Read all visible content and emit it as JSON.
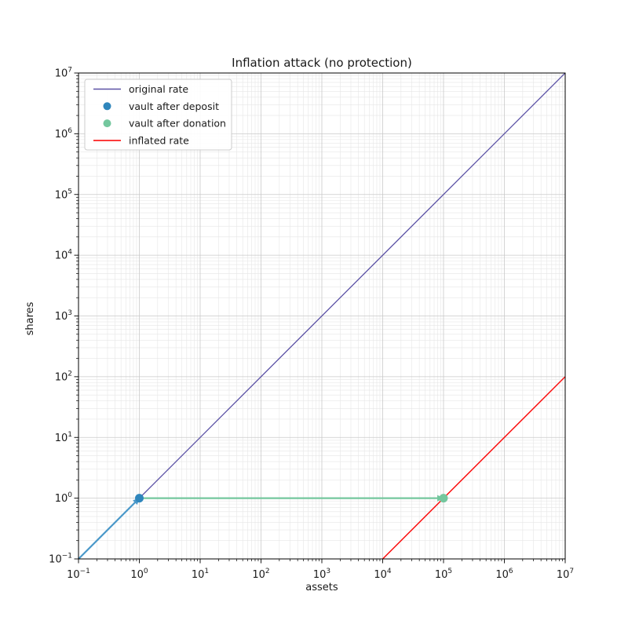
{
  "chart_data": {
    "type": "line",
    "title": "Inflation attack (no protection)",
    "xlabel": "assets",
    "ylabel": "shares",
    "xscale": "log",
    "yscale": "log",
    "xlim": [
      0.1,
      10000000
    ],
    "ylim": [
      0.1,
      10000000
    ],
    "x_tick_exponents": [
      -1,
      0,
      1,
      2,
      3,
      4,
      5,
      6,
      7
    ],
    "y_tick_exponents": [
      -1,
      0,
      1,
      2,
      3,
      4,
      5,
      6,
      7
    ],
    "grid": "both",
    "legend_position": "upper left",
    "series": [
      {
        "name": "original rate",
        "kind": "line",
        "color": "#5b51a5",
        "line_width": 1.3,
        "points": [
          [
            0.1,
            0.1
          ],
          [
            10000000,
            10000000
          ]
        ]
      },
      {
        "name": "vault after deposit",
        "kind": "scatter",
        "color": "#2f86bc",
        "marker_radius": 5.5,
        "points": [
          [
            1,
            1
          ]
        ]
      },
      {
        "name": "vault after donation",
        "kind": "scatter",
        "color": "#74c79e",
        "marker_radius": 5.5,
        "points": [
          [
            100000,
            1
          ]
        ]
      },
      {
        "name": "inflated rate",
        "kind": "line",
        "color": "#fb0f0f",
        "line_width": 1.5,
        "points": [
          [
            10000,
            0.1
          ],
          [
            10000000,
            100
          ]
        ]
      }
    ],
    "annotations": [
      {
        "name": "deposit-arrow",
        "type": "arrow",
        "color": "#4a98c9",
        "from": [
          0.1,
          0.1
        ],
        "to": [
          1,
          1
        ]
      },
      {
        "name": "donation-arrow",
        "type": "arrow",
        "color": "#74c79e",
        "from": [
          1,
          1
        ],
        "to": [
          100000,
          1
        ]
      }
    ],
    "style": {
      "major_grid_color": "#c9c9c9",
      "minor_grid_color": "#e6e6e6",
      "spine_color": "#000000",
      "text_color": "#1a1a1a",
      "legend_border_color": "#cccccc",
      "background": "#ffffff"
    }
  }
}
